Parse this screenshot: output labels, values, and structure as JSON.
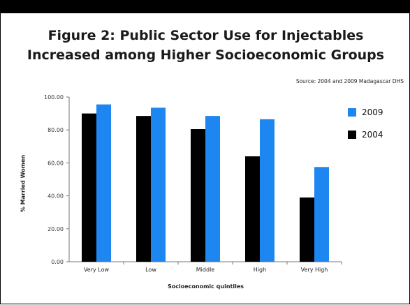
{
  "chart_data": {
    "type": "bar",
    "title": "Figure 2: Public Sector Use for Injectables Increased among Higher Socioeconomic Groups",
    "title_lines": [
      "Figure 2: Public Sector Use for Injectables",
      "Increased among Higher Socioeconomic Groups"
    ],
    "source": "Source: 2004 and 2009 Madagascar DHS",
    "xlabel": "Socioeconomic quintiles",
    "ylabel": "% Married Women",
    "categories": [
      "Very Low",
      "Low",
      "Middle",
      "High",
      "Very High"
    ],
    "ylim": [
      0,
      100
    ],
    "yticks": [
      "0.00",
      "20.00",
      "40.00",
      "60.00",
      "80.00",
      "100.00"
    ],
    "series": [
      {
        "name": "2004",
        "color": "#000000",
        "values": [
          90,
          88.5,
          80.5,
          64,
          39
        ]
      },
      {
        "name": "2009",
        "color": "#1e86f0",
        "values": [
          95.5,
          93.5,
          88.5,
          86.5,
          57.5
        ]
      }
    ],
    "legend_order": [
      "2009",
      "2004"
    ],
    "legend_position": "right",
    "grid": false
  }
}
